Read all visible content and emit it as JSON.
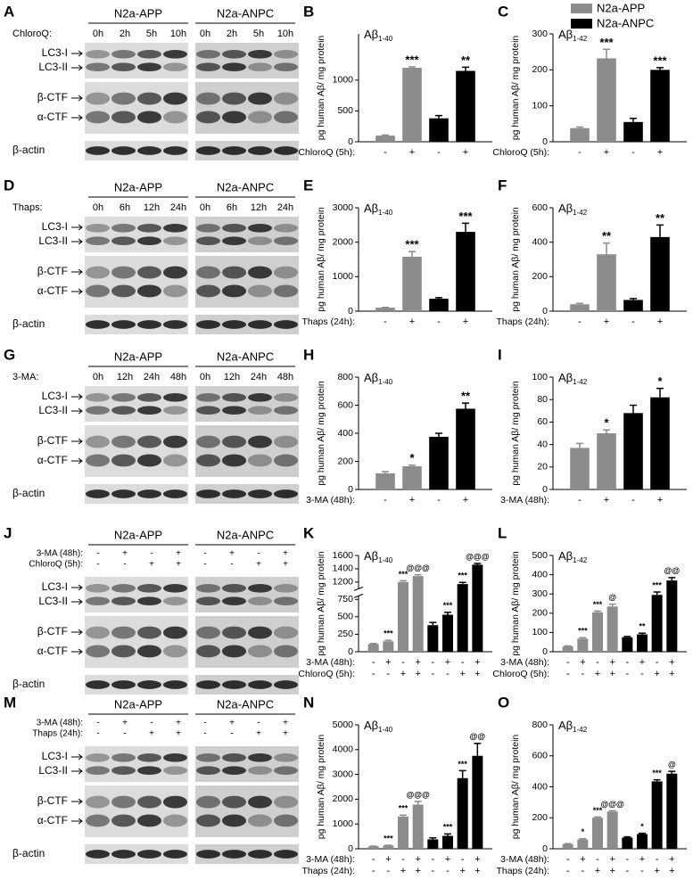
{
  "blots": [
    {
      "panel": "A",
      "groups": [
        "N2a-APP",
        "N2a-ANPC"
      ],
      "treatment": "ChloroQ:",
      "lanes": [
        "0h",
        "2h",
        "5h",
        "10h",
        "0h",
        "2h",
        "5h",
        "10h"
      ],
      "bands": [
        "LC3-I",
        "LC3-II",
        "β-CTF",
        "α-CTF",
        "β-actin"
      ]
    },
    {
      "panel": "D",
      "groups": [
        "N2a-APP",
        "N2a-ANPC"
      ],
      "treatment": "Thaps:",
      "lanes": [
        "0h",
        "6h",
        "12h",
        "24h",
        "0h",
        "6h",
        "12h",
        "24h"
      ],
      "bands": [
        "LC3-I",
        "LC3-II",
        "β-CTF",
        "α-CTF",
        "β-actin"
      ]
    },
    {
      "panel": "G",
      "groups": [
        "N2a-APP",
        "N2a-ANPC"
      ],
      "treatment": "3-MA:",
      "lanes": [
        "0h",
        "12h",
        "24h",
        "48h",
        "0h",
        "12h",
        "24h",
        "48h"
      ],
      "bands": [
        "LC3-I",
        "LC3-II",
        "β-CTF",
        "α-CTF",
        "β-actin"
      ]
    },
    {
      "panel": "J",
      "groups": [
        "N2a-APP",
        "N2a-ANPC"
      ],
      "conditions": [
        {
          "name": "3-MA (48h):",
          "marks": [
            "-",
            "+",
            "-",
            "+",
            "-",
            "+",
            "-",
            "+"
          ]
        },
        {
          "name": "ChloroQ (5h):",
          "marks": [
            "-",
            "-",
            "+",
            "+",
            "-",
            "-",
            "+",
            "+"
          ]
        }
      ],
      "bands": [
        "LC3-I",
        "LC3-II",
        "β-CTF",
        "α-CTF",
        "β-actin"
      ]
    },
    {
      "panel": "M",
      "groups": [
        "N2a-APP",
        "N2a-ANPC"
      ],
      "conditions": [
        {
          "name": "3-MA (48h):",
          "marks": [
            "-",
            "+",
            "-",
            "+",
            "-",
            "+",
            "-",
            "+"
          ]
        },
        {
          "name": "Thaps (24h):",
          "marks": [
            "-",
            "-",
            "+",
            "+",
            "-",
            "-",
            "+",
            "+"
          ]
        }
      ],
      "bands": [
        "LC3-I",
        "LC3-II",
        "β-CTF",
        "α-CTF",
        "β-actin"
      ]
    }
  ],
  "chart_data": [
    {
      "type": "bar",
      "panel": "B",
      "label": "Aβ",
      "label_sub": "1-40",
      "ylabel": "pg human Aβ/ mg protein",
      "ylim": [
        0,
        1750
      ],
      "yticks": [
        0,
        500,
        1000
      ],
      "series": [
        {
          "name": "N2a-APP",
          "color": "#8c8c8c",
          "values": [
            100,
            1200
          ],
          "errors": [
            8,
            15
          ],
          "annotations": [
            null,
            "***"
          ]
        },
        {
          "name": "N2a-ANPC",
          "color": "#000000",
          "values": [
            380,
            1150
          ],
          "errors": [
            45,
            60
          ],
          "annotations": [
            null,
            "**"
          ]
        }
      ],
      "conditions": [
        {
          "name": "ChloroQ (5h):",
          "marks": [
            "-",
            "+",
            "-",
            "+"
          ]
        }
      ]
    },
    {
      "type": "bar",
      "panel": "C",
      "label": "Aβ",
      "label_sub": "1-42",
      "ylabel": "pg human Aβ/ mg protein",
      "ylim": [
        0,
        300
      ],
      "yticks": [
        0,
        100,
        200,
        300
      ],
      "series": [
        {
          "name": "N2a-APP",
          "color": "#8c8c8c",
          "values": [
            38,
            232
          ],
          "errors": [
            3,
            25
          ],
          "annotations": [
            null,
            "***"
          ]
        },
        {
          "name": "N2a-ANPC",
          "color": "#000000",
          "values": [
            55,
            200
          ],
          "errors": [
            10,
            6
          ],
          "annotations": [
            null,
            "***"
          ]
        }
      ],
      "conditions": [
        {
          "name": "ChloroQ (5h):",
          "marks": [
            "-",
            "+",
            "-",
            "+"
          ]
        }
      ]
    },
    {
      "type": "bar",
      "panel": "E",
      "label": "Aβ",
      "label_sub": "1-40",
      "ylabel": "pg human Aβ/ mg protein",
      "ylim": [
        0,
        3000
      ],
      "yticks": [
        0,
        1000,
        2000,
        3000
      ],
      "series": [
        {
          "name": "N2a-APP",
          "color": "#8c8c8c",
          "values": [
            100,
            1580
          ],
          "errors": [
            10,
            150
          ],
          "annotations": [
            null,
            "***"
          ]
        },
        {
          "name": "N2a-ANPC",
          "color": "#000000",
          "values": [
            360,
            2300
          ],
          "errors": [
            30,
            250
          ],
          "annotations": [
            null,
            "***"
          ]
        }
      ],
      "conditions": [
        {
          "name": "Thaps (24h):",
          "marks": [
            "-",
            "+",
            "-",
            "+"
          ]
        }
      ]
    },
    {
      "type": "bar",
      "panel": "F",
      "label": "Aβ",
      "label_sub": "1-42",
      "ylabel": "pg human Aβ/ mg protein",
      "ylim": [
        0,
        600
      ],
      "yticks": [
        0,
        200,
        400,
        600
      ],
      "series": [
        {
          "name": "N2a-APP",
          "color": "#8c8c8c",
          "values": [
            40,
            330
          ],
          "errors": [
            5,
            65
          ],
          "annotations": [
            null,
            "**"
          ]
        },
        {
          "name": "N2a-ANPC",
          "color": "#000000",
          "values": [
            65,
            430
          ],
          "errors": [
            8,
            70
          ],
          "annotations": [
            null,
            "**"
          ]
        }
      ],
      "conditions": [
        {
          "name": "Thaps (24h):",
          "marks": [
            "-",
            "+",
            "-",
            "+"
          ]
        }
      ]
    },
    {
      "type": "bar",
      "panel": "H",
      "label": "Aβ",
      "label_sub": "1-40",
      "ylabel": "pg human Aβ/ mg protein",
      "ylim": [
        0,
        800
      ],
      "yticks": [
        0,
        200,
        400,
        600,
        800
      ],
      "series": [
        {
          "name": "N2a-APP",
          "color": "#8c8c8c",
          "values": [
            115,
            165
          ],
          "errors": [
            12,
            8
          ],
          "annotations": [
            null,
            "*"
          ]
        },
        {
          "name": "N2a-ANPC",
          "color": "#000000",
          "values": [
            375,
            575
          ],
          "errors": [
            25,
            40
          ],
          "annotations": [
            null,
            "**"
          ]
        }
      ],
      "conditions": [
        {
          "name": "3-MA (48h):",
          "marks": [
            "-",
            "+",
            "-",
            "+"
          ]
        }
      ]
    },
    {
      "type": "bar",
      "panel": "I",
      "label": "Aβ",
      "label_sub": "1-42",
      "ylabel": "pg human Aβ/ mg protein",
      "ylim": [
        0,
        100
      ],
      "yticks": [
        0,
        20,
        40,
        60,
        80,
        100
      ],
      "series": [
        {
          "name": "N2a-APP",
          "color": "#8c8c8c",
          "values": [
            37,
            50
          ],
          "errors": [
            4,
            3
          ],
          "annotations": [
            null,
            "*"
          ]
        },
        {
          "name": "N2a-ANPC",
          "color": "#000000",
          "values": [
            68,
            82
          ],
          "errors": [
            7,
            8
          ],
          "annotations": [
            null,
            "*"
          ]
        }
      ],
      "conditions": [
        {
          "name": "3-MA (48h):",
          "marks": [
            "-",
            "+",
            "-",
            "+"
          ]
        }
      ]
    },
    {
      "type": "bar",
      "panel": "K",
      "label": "Aβ",
      "label_sub": "1-40",
      "ylabel": "pg human Aβ/ mg protein",
      "ylim": [
        0,
        1600
      ],
      "ybreak": [
        800,
        1100
      ],
      "yticks": [
        0,
        250,
        500,
        750,
        1200,
        1400,
        1600
      ],
      "series": [
        {
          "name": "N2a-APP",
          "color": "#8c8c8c",
          "values": [
            110,
            150,
            1200,
            1290
          ],
          "errors": [
            8,
            15,
            20,
            20
          ],
          "annotations": [
            null,
            "***",
            "***",
            "@@@"
          ]
        },
        {
          "name": "N2a-ANPC",
          "color": "#000000",
          "values": [
            380,
            530,
            1170,
            1460
          ],
          "errors": [
            40,
            35,
            25,
            20
          ],
          "annotations": [
            null,
            "***",
            "***",
            "@@@"
          ]
        }
      ],
      "conditions": [
        {
          "name": "3-MA (48h):",
          "marks": [
            "-",
            "+",
            "-",
            "+",
            "-",
            "+",
            "-",
            "+"
          ]
        },
        {
          "name": "ChloroQ (5h):",
          "marks": [
            "-",
            "-",
            "+",
            "+",
            "-",
            "-",
            "+",
            "+"
          ]
        }
      ]
    },
    {
      "type": "bar",
      "panel": "L",
      "label": "Aβ",
      "label_sub": "1-42",
      "ylabel": "pg human Aβ/ mg protein",
      "ylim": [
        0,
        500
      ],
      "yticks": [
        0,
        100,
        200,
        300,
        400,
        500
      ],
      "series": [
        {
          "name": "N2a-APP",
          "color": "#8c8c8c",
          "values": [
            28,
            68,
            205,
            235
          ],
          "errors": [
            2,
            5,
            6,
            12
          ],
          "annotations": [
            null,
            "***",
            "***",
            "@"
          ]
        },
        {
          "name": "N2a-ANPC",
          "color": "#000000",
          "values": [
            75,
            90,
            295,
            370
          ],
          "errors": [
            4,
            6,
            15,
            15
          ],
          "annotations": [
            null,
            "**",
            "***",
            "@@"
          ]
        }
      ],
      "conditions": [
        {
          "name": "3-MA (48h):",
          "marks": [
            "-",
            "+",
            "-",
            "+",
            "-",
            "+",
            "-",
            "+"
          ]
        },
        {
          "name": "ChloroQ (5h):",
          "marks": [
            "-",
            "-",
            "+",
            "+",
            "-",
            "-",
            "+",
            "+"
          ]
        }
      ]
    },
    {
      "type": "bar",
      "panel": "N",
      "label": "Aβ",
      "label_sub": "1-40",
      "ylabel": "pg human Aβ/ mg protein",
      "ylim": [
        0,
        5000
      ],
      "yticks": [
        0,
        1000,
        2000,
        3000,
        4000,
        5000
      ],
      "series": [
        {
          "name": "N2a-APP",
          "color": "#8c8c8c",
          "values": [
            100,
            130,
            1300,
            1780
          ],
          "errors": [
            10,
            15,
            60,
            130
          ],
          "annotations": [
            null,
            "***",
            "***",
            "@@@"
          ]
        },
        {
          "name": "N2a-ANPC",
          "color": "#000000",
          "values": [
            380,
            520,
            2850,
            3750
          ],
          "errors": [
            60,
            80,
            300,
            500
          ],
          "annotations": [
            null,
            "***",
            "***",
            "@@"
          ]
        }
      ],
      "conditions": [
        {
          "name": "3-MA (48h):",
          "marks": [
            "-",
            "+",
            "-",
            "+",
            "-",
            "+",
            "-",
            "+"
          ]
        },
        {
          "name": "Thaps (24h):",
          "marks": [
            "-",
            "-",
            "+",
            "+",
            "-",
            "-",
            "+",
            "+"
          ]
        }
      ]
    },
    {
      "type": "bar",
      "panel": "O",
      "label": "Aβ",
      "label_sub": "1-42",
      "ylabel": "pg human Aβ/ mg protein",
      "ylim": [
        0,
        800
      ],
      "yticks": [
        0,
        200,
        400,
        600,
        800
      ],
      "series": [
        {
          "name": "N2a-APP",
          "color": "#8c8c8c",
          "values": [
            30,
            60,
            200,
            240
          ],
          "errors": [
            3,
            5,
            5,
            5
          ],
          "annotations": [
            null,
            "*",
            "***",
            "@@@"
          ]
        },
        {
          "name": "N2a-ANPC",
          "color": "#000000",
          "values": [
            72,
            95,
            435,
            485
          ],
          "errors": [
            5,
            5,
            10,
            15
          ],
          "annotations": [
            null,
            "*",
            "***",
            "@"
          ]
        }
      ],
      "conditions": [
        {
          "name": "3-MA (48h):",
          "marks": [
            "-",
            "+",
            "-",
            "+",
            "-",
            "+",
            "-",
            "+"
          ]
        },
        {
          "name": "Thaps (24h):",
          "marks": [
            "-",
            "-",
            "+",
            "+",
            "-",
            "-",
            "+",
            "+"
          ]
        }
      ]
    }
  ]
}
